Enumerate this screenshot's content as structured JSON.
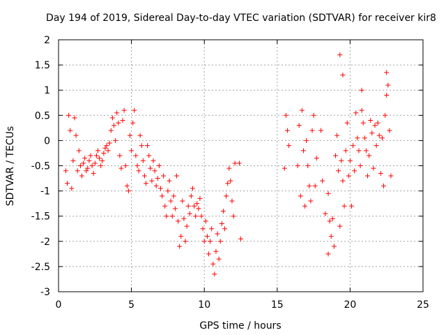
{
  "chart_data": {
    "type": "scatter",
    "title": "Day 194 of 2019, Sidereal Day-to-day VTEC variation (SDTVAR) for receiver kir8",
    "xlabel": "GPS time / hours",
    "ylabel": "SDTVAR / TECUs",
    "xlim": [
      0,
      25
    ],
    "ylim": [
      -3,
      2
    ],
    "xticks": [
      0,
      5,
      10,
      15,
      20,
      25
    ],
    "xtick_labels": [
      "0",
      "5",
      "10",
      "15",
      "20",
      "25"
    ],
    "yticks": [
      -3,
      -2.5,
      -2,
      -1.5,
      -1,
      -0.5,
      0,
      0.5,
      1,
      1.5,
      2
    ],
    "ytick_labels": [
      "-3",
      "-2.5",
      "-2",
      "-1.5",
      "-1",
      "-0.5",
      "0",
      "0.5",
      "1",
      "1.5",
      "2"
    ],
    "grid": true,
    "marker": "+",
    "color": "#ff0000",
    "series": [
      {
        "name": "SDTVAR",
        "points": [
          [
            0.5,
            -0.6
          ],
          [
            0.6,
            -0.85
          ],
          [
            0.7,
            0.5
          ],
          [
            0.8,
            0.2
          ],
          [
            0.9,
            -0.95
          ],
          [
            1.0,
            -0.4
          ],
          [
            1.1,
            0.45
          ],
          [
            1.2,
            0.1
          ],
          [
            1.3,
            -0.6
          ],
          [
            1.4,
            -0.2
          ],
          [
            1.5,
            -0.5
          ],
          [
            1.6,
            -0.7
          ],
          [
            1.7,
            -0.45
          ],
          [
            1.8,
            -0.35
          ],
          [
            1.9,
            -0.6
          ],
          [
            2.0,
            -0.55
          ],
          [
            2.1,
            -0.4
          ],
          [
            2.2,
            -0.3
          ],
          [
            2.3,
            -0.5
          ],
          [
            2.4,
            -0.65
          ],
          [
            2.5,
            -0.45
          ],
          [
            2.6,
            -0.3
          ],
          [
            2.7,
            -0.2
          ],
          [
            2.8,
            -0.35
          ],
          [
            2.9,
            -0.5
          ],
          [
            3.0,
            -0.4
          ],
          [
            3.1,
            -0.25
          ],
          [
            3.2,
            -0.15
          ],
          [
            3.3,
            -0.1
          ],
          [
            3.4,
            -0.2
          ],
          [
            3.5,
            -0.05
          ],
          [
            3.6,
            0.2
          ],
          [
            3.7,
            0.45
          ],
          [
            3.8,
            0.3
          ],
          [
            3.9,
            0.0
          ],
          [
            4.0,
            0.55
          ],
          [
            4.1,
            0.35
          ],
          [
            4.2,
            -0.3
          ],
          [
            4.3,
            -0.55
          ],
          [
            4.4,
            0.4
          ],
          [
            4.5,
            0.6
          ],
          [
            4.6,
            -0.5
          ],
          [
            4.7,
            -0.9
          ],
          [
            4.8,
            -1.0
          ],
          [
            4.9,
            0.1
          ],
          [
            5.0,
            -0.2
          ],
          [
            5.1,
            0.35
          ],
          [
            5.2,
            0.6
          ],
          [
            5.3,
            -0.3
          ],
          [
            5.4,
            -0.5
          ],
          [
            5.5,
            -0.6
          ],
          [
            5.6,
            0.1
          ],
          [
            5.7,
            -0.1
          ],
          [
            5.8,
            -0.4
          ],
          [
            5.9,
            -0.7
          ],
          [
            6.0,
            -0.85
          ],
          [
            6.1,
            -0.1
          ],
          [
            6.2,
            -0.3
          ],
          [
            6.3,
            -0.55
          ],
          [
            6.4,
            -0.8
          ],
          [
            6.5,
            -0.4
          ],
          [
            6.6,
            -0.6
          ],
          [
            6.7,
            -0.9
          ],
          [
            6.8,
            -0.75
          ],
          [
            6.9,
            -0.5
          ],
          [
            7.0,
            -0.95
          ],
          [
            7.1,
            -1.1
          ],
          [
            7.2,
            -0.7
          ],
          [
            7.3,
            -1.3
          ],
          [
            7.4,
            -1.5
          ],
          [
            7.5,
            -1.0
          ],
          [
            7.6,
            -0.8
          ],
          [
            7.7,
            -1.2
          ],
          [
            7.8,
            -1.5
          ],
          [
            7.9,
            -1.1
          ],
          [
            8.0,
            -1.35
          ],
          [
            8.1,
            -0.7
          ],
          [
            8.2,
            -1.6
          ],
          [
            8.3,
            -2.1
          ],
          [
            8.4,
            -1.9
          ],
          [
            8.5,
            -1.2
          ],
          [
            8.6,
            -1.55
          ],
          [
            8.7,
            -2.0
          ],
          [
            8.8,
            -1.7
          ],
          [
            8.9,
            -1.3
          ],
          [
            9.0,
            -1.45
          ],
          [
            9.1,
            -1.1
          ],
          [
            9.2,
            -0.95
          ],
          [
            9.3,
            -1.3
          ],
          [
            9.4,
            -1.5
          ],
          [
            9.5,
            -1.25
          ],
          [
            9.6,
            -1.35
          ],
          [
            9.7,
            -1.15
          ],
          [
            9.8,
            -1.5
          ],
          [
            9.9,
            -1.75
          ],
          [
            10.0,
            -2.0
          ],
          [
            10.1,
            -1.6
          ],
          [
            10.2,
            -1.9
          ],
          [
            10.3,
            -2.25
          ],
          [
            10.4,
            -2.0
          ],
          [
            10.5,
            -1.75
          ],
          [
            10.6,
            -2.45
          ],
          [
            10.7,
            -2.65
          ],
          [
            10.8,
            -2.2
          ],
          [
            10.9,
            -1.85
          ],
          [
            11.0,
            -2.35
          ],
          [
            11.1,
            -2.0
          ],
          [
            11.2,
            -1.65
          ],
          [
            11.3,
            -1.4
          ],
          [
            11.4,
            -1.75
          ],
          [
            11.5,
            -1.1
          ],
          [
            11.6,
            -0.85
          ],
          [
            11.7,
            -0.55
          ],
          [
            11.8,
            -0.8
          ],
          [
            11.9,
            -1.2
          ],
          [
            12.0,
            -1.5
          ],
          [
            12.1,
            -0.45
          ],
          [
            12.4,
            -0.45
          ],
          [
            12.5,
            -1.95
          ],
          [
            15.5,
            -0.55
          ],
          [
            15.6,
            0.5
          ],
          [
            15.7,
            0.2
          ],
          [
            15.8,
            -0.1
          ],
          [
            16.4,
            -0.5
          ],
          [
            16.5,
            0.3
          ],
          [
            16.6,
            -1.1
          ],
          [
            16.7,
            0.6
          ],
          [
            16.8,
            -0.2
          ],
          [
            16.9,
            -1.3
          ],
          [
            17.0,
            0.0
          ],
          [
            17.1,
            -0.5
          ],
          [
            17.2,
            -0.9
          ],
          [
            17.3,
            -1.2
          ],
          [
            17.4,
            0.2
          ],
          [
            17.5,
            0.5
          ],
          [
            17.6,
            -0.9
          ],
          [
            17.7,
            -0.35
          ],
          [
            18.0,
            0.2
          ],
          [
            18.1,
            -0.8
          ],
          [
            18.3,
            -1.45
          ],
          [
            18.5,
            -1.05
          ],
          [
            18.6,
            -1.6
          ],
          [
            18.7,
            -1.9
          ],
          [
            18.8,
            -1.55
          ],
          [
            18.9,
            -2.1
          ],
          [
            19.0,
            -0.3
          ],
          [
            19.1,
            0.1
          ],
          [
            19.2,
            -0.6
          ],
          [
            19.3,
            -1.7
          ],
          [
            19.4,
            -0.4
          ],
          [
            19.5,
            -0.8
          ],
          [
            19.6,
            -1.3
          ],
          [
            19.7,
            -0.2
          ],
          [
            19.8,
            0.35
          ],
          [
            19.9,
            -0.7
          ],
          [
            20.0,
            -0.4
          ],
          [
            20.1,
            -1.3
          ],
          [
            20.2,
            -0.1
          ],
          [
            20.3,
            -0.6
          ],
          [
            20.4,
            0.55
          ],
          [
            20.5,
            0.05
          ],
          [
            20.6,
            -0.2
          ],
          [
            20.7,
            -0.5
          ],
          [
            20.8,
            0.6
          ],
          [
            20.9,
            0.35
          ],
          [
            21.0,
            0.05
          ],
          [
            21.1,
            -0.2
          ],
          [
            21.2,
            -0.7
          ],
          [
            21.3,
            -0.3
          ],
          [
            21.4,
            0.4
          ],
          [
            21.5,
            0.15
          ],
          [
            21.6,
            -0.55
          ],
          [
            21.7,
            0.3
          ],
          [
            21.8,
            -0.1
          ],
          [
            21.9,
            0.35
          ],
          [
            22.0,
            0.1
          ],
          [
            22.1,
            -0.65
          ],
          [
            22.2,
            0.05
          ],
          [
            22.3,
            -0.9
          ],
          [
            22.4,
            0.5
          ],
          [
            22.5,
            0.9
          ],
          [
            22.6,
            1.1
          ],
          [
            22.7,
            0.2
          ],
          [
            22.8,
            -0.7
          ],
          [
            19.3,
            1.7
          ],
          [
            19.5,
            1.3
          ],
          [
            22.5,
            1.35
          ],
          [
            20.8,
            1.0
          ],
          [
            18.5,
            -2.25
          ]
        ]
      }
    ]
  }
}
